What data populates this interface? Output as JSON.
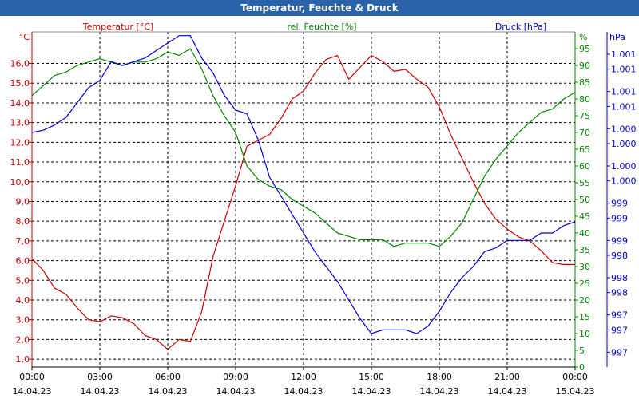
{
  "window": {
    "title": "Temperatur, Feuchte & Druck"
  },
  "colors": {
    "temperature": "#cc0000",
    "humidity": "#008800",
    "pressure": "#0000cc",
    "axis": "#000000",
    "grid": "#000000",
    "titlebar": "#2a63a9"
  },
  "chart_data": {
    "type": "line",
    "title": "Temperatur, Feuchte & Druck",
    "x": [
      "00:00",
      "03:00",
      "06:00",
      "09:00",
      "12:00",
      "15:00",
      "18:00",
      "21:00",
      "00:00"
    ],
    "x_dates": [
      "14.04.23",
      "14.04.23",
      "14.04.23",
      "14.04.23",
      "14.04.23",
      "14.04.23",
      "14.04.23",
      "14.04.23",
      "15.04.23"
    ],
    "x_hours": [
      0,
      24
    ],
    "grid": true,
    "axes": {
      "temperature": {
        "label": "Temperatur [°C]",
        "unit": "°C",
        "range": [
          0.6,
          17.6
        ],
        "ticks": [
          "1,0",
          "2,0",
          "3,0",
          "4,0",
          "5,0",
          "6,0",
          "7,0",
          "8,0",
          "9,0",
          "10,0",
          "11,0",
          "12,0",
          "13,0",
          "14,0",
          "15,0",
          "16,0"
        ],
        "tick_values": [
          1,
          2,
          3,
          4,
          5,
          6,
          7,
          8,
          9,
          10,
          11,
          12,
          13,
          14,
          15,
          16
        ]
      },
      "humidity": {
        "label": "rel. Feuchte [%]",
        "unit": "%",
        "range": [
          0,
          100
        ],
        "ticks": [
          "0",
          "5",
          "10",
          "15",
          "20",
          "25",
          "30",
          "35",
          "40",
          "45",
          "50",
          "55",
          "60",
          "65",
          "70",
          "75",
          "80",
          "85",
          "90",
          "95"
        ],
        "tick_values": [
          0,
          5,
          10,
          15,
          20,
          25,
          30,
          35,
          40,
          45,
          50,
          55,
          60,
          65,
          70,
          75,
          80,
          85,
          90,
          95
        ]
      },
      "pressure": {
        "label": "Druck [hPa]",
        "unit": "hPa",
        "range": [
          996.8,
          1001.3
        ],
        "ticks": [
          "1.001",
          "1.001",
          "1.001",
          "1.001",
          "1.000",
          "1.000",
          "1.000",
          "1.000",
          "999",
          "999",
          "999",
          "998",
          "998",
          "998",
          "997",
          "997",
          "997"
        ],
        "tick_values": [
          1001.0,
          1000.8,
          1000.5,
          1000.3,
          1000.0,
          999.8,
          999.5,
          999.3,
          999.0,
          998.8,
          998.5,
          998.3,
          998.0,
          997.8,
          997.5,
          997.3,
          997.0
        ]
      }
    },
    "series": [
      {
        "name": "Temperatur [°C]",
        "axis": "temperature",
        "x": [
          0,
          0.5,
          1,
          1.5,
          2,
          2.5,
          3,
          3.5,
          4,
          4.5,
          5,
          5.5,
          6,
          6.5,
          7,
          7.5,
          8,
          8.5,
          9,
          9.5,
          10,
          10.5,
          11,
          11.5,
          12,
          12.5,
          13,
          13.5,
          14,
          14.5,
          15,
          15.5,
          16,
          16.5,
          17,
          17.5,
          18,
          18.5,
          19,
          19.5,
          20,
          20.5,
          21,
          21.5,
          22,
          22.5,
          23,
          23.5,
          24
        ],
        "values": [
          6.1,
          5.5,
          4.6,
          4.3,
          3.6,
          3.0,
          2.9,
          3.2,
          3.1,
          2.8,
          2.2,
          2.0,
          1.5,
          2.0,
          1.9,
          3.4,
          6.2,
          8.0,
          9.8,
          11.8,
          12.1,
          12.4,
          13.2,
          14.2,
          14.6,
          15.5,
          16.2,
          16.4,
          15.2,
          15.8,
          16.4,
          16.1,
          15.6,
          15.7,
          15.2,
          14.8,
          13.8,
          12.4,
          11.2,
          10.0,
          8.9,
          8.1,
          7.6,
          7.2,
          7.0,
          6.5,
          5.9,
          5.8,
          5.8
        ]
      },
      {
        "name": "rel. Feuchte [%]",
        "axis": "humidity",
        "x": [
          0,
          0.5,
          1,
          1.5,
          2,
          2.5,
          3,
          3.5,
          4,
          4.5,
          5,
          5.5,
          6,
          6.5,
          7,
          7.5,
          8,
          8.5,
          9,
          9.5,
          10,
          10.5,
          11,
          11.5,
          12,
          12.5,
          13,
          13.5,
          14,
          14.5,
          15,
          15.5,
          16,
          16.5,
          17,
          17.5,
          18,
          18.5,
          19,
          19.5,
          20,
          20.5,
          21,
          21.5,
          22,
          22.5,
          23,
          23.5,
          24
        ],
        "values": [
          81,
          84,
          87,
          88,
          90,
          91,
          92,
          91,
          90,
          91,
          91,
          92,
          94,
          93,
          95,
          89,
          81,
          75,
          70,
          60,
          56,
          54,
          53,
          50,
          48,
          46,
          43,
          40,
          39,
          38,
          38,
          38,
          36,
          37,
          37,
          37,
          36,
          39,
          43,
          50,
          57,
          62,
          66,
          70,
          73,
          76,
          77,
          80,
          82
        ]
      },
      {
        "name": "Druck [hPa]",
        "axis": "pressure",
        "x": [
          0,
          0.5,
          1,
          1.5,
          2,
          2.5,
          3,
          3.5,
          4,
          4.5,
          5,
          5.5,
          6,
          6.5,
          7,
          7.5,
          8,
          8.5,
          9,
          9.5,
          10,
          10.5,
          11,
          11.5,
          12,
          12.5,
          13,
          13.5,
          14,
          14.5,
          15,
          15.5,
          16,
          16.5,
          17,
          17.5,
          18,
          18.5,
          19,
          19.5,
          20,
          20.5,
          21,
          21.5,
          22,
          22.5,
          23,
          23.5,
          24
        ],
        "values": [
          999.95,
          999.98,
          1000.05,
          1000.15,
          1000.35,
          1000.55,
          1000.65,
          1000.9,
          1000.85,
          1000.9,
          1000.95,
          1001.05,
          1001.15,
          1001.25,
          1001.25,
          1000.95,
          1000.75,
          1000.45,
          1000.25,
          1000.2,
          999.85,
          999.35,
          999.1,
          998.85,
          998.6,
          998.35,
          998.15,
          997.95,
          997.7,
          997.45,
          997.25,
          997.3,
          997.3,
          997.3,
          997.25,
          997.35,
          997.55,
          997.8,
          998.0,
          998.15,
          998.35,
          998.4,
          998.5,
          998.5,
          998.5,
          998.6,
          998.6,
          998.7,
          998.75
        ]
      }
    ]
  }
}
